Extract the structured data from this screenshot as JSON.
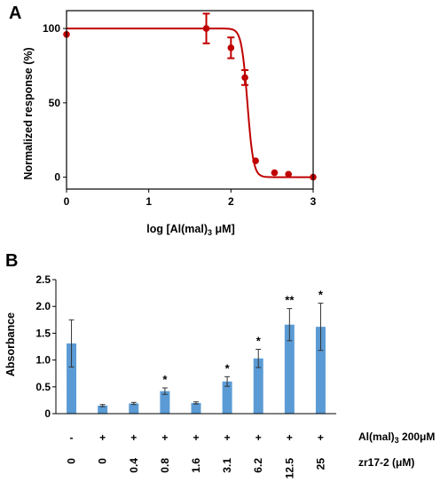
{
  "chart_data": [
    {
      "panel": "A",
      "type": "line",
      "ylabel": "Normalized response (%)",
      "xlabel_main": "log [Al(mal)",
      "xlabel_sub": "3",
      "xlabel_unit": " μM]",
      "xlim": [
        0,
        3
      ],
      "ylim": [
        -8,
        112
      ],
      "x_ticks": [
        "0",
        "1",
        "2",
        "3"
      ],
      "y_ticks": [
        "0",
        "50",
        "100"
      ],
      "color": "#c00000",
      "points": [
        {
          "x": 0.0,
          "y": 96,
          "err": 0
        },
        {
          "x": 1.7,
          "y": 100,
          "err": 10
        },
        {
          "x": 2.0,
          "y": 87,
          "err": 7
        },
        {
          "x": 2.17,
          "y": 67,
          "err": 5
        },
        {
          "x": 2.3,
          "y": 11,
          "err": 0
        },
        {
          "x": 2.53,
          "y": 3,
          "err": 0
        },
        {
          "x": 2.7,
          "y": 2,
          "err": 0
        },
        {
          "x": 3.0,
          "y": 0,
          "err": 0
        }
      ],
      "fit": {
        "top": 100,
        "bottom": 0,
        "logIC50": 2.2,
        "hill": 12
      }
    },
    {
      "panel": "B",
      "type": "bar",
      "ylabel": "Absorbance",
      "ylim": [
        0,
        2.5
      ],
      "y_ticks": [
        "0",
        "0.5",
        "1.0",
        "1.5",
        "2.0",
        "2.5"
      ],
      "color": "#5b9bd5",
      "values": [
        1.31,
        0.15,
        0.19,
        0.42,
        0.2,
        0.6,
        1.03,
        1.66,
        1.62
      ],
      "errors": [
        0.44,
        0.02,
        0.02,
        0.06,
        0.02,
        0.09,
        0.17,
        0.3,
        0.44
      ],
      "significance": [
        "",
        "",
        "",
        "*",
        "",
        "*",
        "*",
        "**",
        "*"
      ],
      "treatment_label_main": "Al(mal)",
      "treatment_label_sub": "3",
      "treatment_label_rest": " 200μM",
      "treatment": [
        "-",
        "+",
        "+",
        "+",
        "+",
        "+",
        "+",
        "+",
        "+"
      ],
      "compound_label": "zr17-2 (μM)",
      "compound": [
        "0",
        "0",
        "0.4",
        "0.8",
        "1.6",
        "3.1",
        "6.2",
        "12.5",
        "25"
      ]
    }
  ]
}
